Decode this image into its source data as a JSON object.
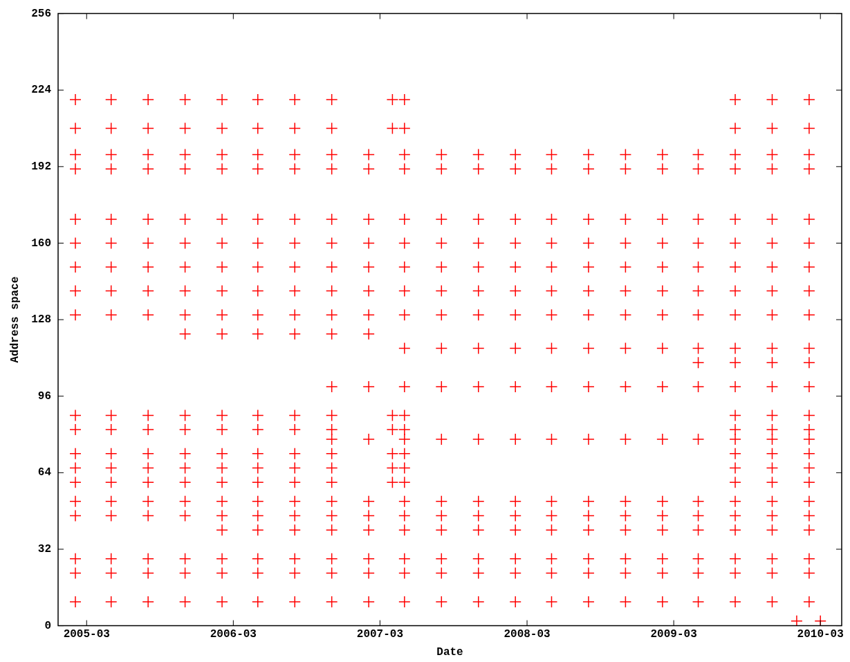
{
  "chart_data": {
    "type": "scatter",
    "xlabel": "Date",
    "ylabel": "Address space",
    "marker": "cross",
    "grid": false,
    "legend": false,
    "xlim": [
      "2004-12-20",
      "2010-04-23"
    ],
    "xticks": [
      "2005-03",
      "2006-03",
      "2007-03",
      "2008-03",
      "2009-03",
      "2010-03"
    ],
    "ylim": [
      0,
      256
    ],
    "yticks": [
      0,
      32,
      64,
      96,
      128,
      160,
      192,
      224,
      256
    ],
    "x": [
      "2005-02",
      "2005-05",
      "2005-08",
      "2005-11",
      "2006-02",
      "2006-05",
      "2006-08",
      "2006-11",
      "2007-02",
      "2007-05",
      "2007-08",
      "2007-11",
      "2008-02",
      "2008-05",
      "2008-08",
      "2008-11",
      "2009-02",
      "2009-05",
      "2009-08",
      "2009-11",
      "2010-02"
    ],
    "series": [
      {
        "color": "#ff0000",
        "x": [
          "2005-02",
          "2005-05",
          "2005-08",
          "2005-11",
          "2006-02",
          "2006-05",
          "2006-08",
          "2006-11",
          "2007-04",
          "2007-05",
          "2009-08",
          "2009-11",
          "2010-02"
        ],
        "values": [
          220,
          220,
          220,
          220,
          220,
          220,
          220,
          220,
          220,
          220,
          220,
          220,
          220
        ]
      },
      {
        "color": "#ff0000",
        "x": [
          "2005-02",
          "2005-05",
          "2005-08",
          "2005-11",
          "2006-02",
          "2006-05",
          "2006-08",
          "2006-11",
          "2007-04",
          "2007-05",
          "2009-08",
          "2009-11",
          "2010-02"
        ],
        "values": [
          208,
          208,
          208,
          208,
          208,
          208,
          208,
          208,
          208,
          208,
          208,
          208,
          208
        ]
      },
      {
        "color": "#ff0000",
        "values": [
          197,
          197,
          197,
          197,
          197,
          197,
          197,
          197,
          197,
          197,
          197,
          197,
          197,
          197,
          197,
          197,
          197,
          197,
          197,
          197,
          197
        ]
      },
      {
        "color": "#ff0000",
        "values": [
          191,
          191,
          191,
          191,
          191,
          191,
          191,
          191,
          191,
          191,
          191,
          191,
          191,
          191,
          191,
          191,
          191,
          191,
          191,
          191,
          191
        ]
      },
      {
        "color": "#ff0000",
        "values": [
          170,
          170,
          170,
          170,
          170,
          170,
          170,
          170,
          170,
          170,
          170,
          170,
          170,
          170,
          170,
          170,
          170,
          170,
          170,
          170,
          170
        ]
      },
      {
        "color": "#ff0000",
        "values": [
          160,
          160,
          160,
          160,
          160,
          160,
          160,
          160,
          160,
          160,
          160,
          160,
          160,
          160,
          160,
          160,
          160,
          160,
          160,
          160,
          160
        ]
      },
      {
        "color": "#ff0000",
        "values": [
          150,
          150,
          150,
          150,
          150,
          150,
          150,
          150,
          150,
          150,
          150,
          150,
          150,
          150,
          150,
          150,
          150,
          150,
          150,
          150,
          150
        ]
      },
      {
        "color": "#ff0000",
        "values": [
          140,
          140,
          140,
          140,
          140,
          140,
          140,
          140,
          140,
          140,
          140,
          140,
          140,
          140,
          140,
          140,
          140,
          140,
          140,
          140,
          140
        ]
      },
      {
        "color": "#ff0000",
        "values": [
          130,
          130,
          130,
          130,
          130,
          130,
          130,
          130,
          130,
          130,
          130,
          130,
          130,
          130,
          130,
          130,
          130,
          130,
          130,
          130,
          130
        ]
      },
      {
        "color": "#ff0000",
        "x": [
          "2005-11",
          "2006-02",
          "2006-05",
          "2006-08",
          "2006-11",
          "2007-02"
        ],
        "values": [
          122,
          122,
          122,
          122,
          122,
          122
        ]
      },
      {
        "color": "#ff0000",
        "x": [
          "2007-05",
          "2007-08",
          "2007-11",
          "2008-02",
          "2008-05",
          "2008-08",
          "2008-11",
          "2009-02",
          "2009-05",
          "2009-08",
          "2009-11",
          "2010-02"
        ],
        "values": [
          116,
          116,
          116,
          116,
          116,
          116,
          116,
          116,
          116,
          116,
          116,
          116
        ]
      },
      {
        "color": "#ff0000",
        "x": [
          "2009-05",
          "2009-08",
          "2009-11",
          "2010-02"
        ],
        "values": [
          110,
          110,
          110,
          110
        ]
      },
      {
        "color": "#ff0000",
        "x": [
          "2006-11",
          "2007-02",
          "2007-05",
          "2007-08",
          "2007-11",
          "2008-02",
          "2008-05",
          "2008-08",
          "2008-11",
          "2009-02",
          "2009-05",
          "2009-08",
          "2009-11",
          "2010-02"
        ],
        "values": [
          100,
          100,
          100,
          100,
          100,
          100,
          100,
          100,
          100,
          100,
          100,
          100,
          100,
          100
        ]
      },
      {
        "color": "#ff0000",
        "x": [
          "2005-02",
          "2005-05",
          "2005-08",
          "2005-11",
          "2006-02",
          "2006-05",
          "2006-08",
          "2006-11",
          "2007-04",
          "2007-05",
          "2009-08",
          "2009-11",
          "2010-02"
        ],
        "values": [
          88,
          88,
          88,
          88,
          88,
          88,
          88,
          88,
          88,
          88,
          88,
          88,
          88
        ]
      },
      {
        "color": "#ff0000",
        "x": [
          "2005-02",
          "2005-05",
          "2005-08",
          "2005-11",
          "2006-02",
          "2006-05",
          "2006-08",
          "2006-11",
          "2007-04",
          "2007-05",
          "2009-08",
          "2009-11",
          "2010-02"
        ],
        "values": [
          82,
          82,
          82,
          82,
          82,
          82,
          82,
          82,
          82,
          82,
          82,
          82,
          82
        ]
      },
      {
        "color": "#ff0000",
        "x": [
          "2006-11",
          "2007-02",
          "2007-05",
          "2007-08",
          "2007-11",
          "2008-02",
          "2008-05",
          "2008-08",
          "2008-11",
          "2009-02",
          "2009-05",
          "2009-08",
          "2009-11",
          "2010-02"
        ],
        "values": [
          78,
          78,
          78,
          78,
          78,
          78,
          78,
          78,
          78,
          78,
          78,
          78,
          78,
          78
        ]
      },
      {
        "color": "#ff0000",
        "x": [
          "2005-02",
          "2005-05",
          "2005-08",
          "2005-11",
          "2006-02",
          "2006-05",
          "2006-08",
          "2006-11",
          "2007-04",
          "2007-05",
          "2009-08",
          "2009-11",
          "2010-02"
        ],
        "values": [
          72,
          72,
          72,
          72,
          72,
          72,
          72,
          72,
          72,
          72,
          72,
          72,
          72
        ]
      },
      {
        "color": "#ff0000",
        "x": [
          "2005-02",
          "2005-05",
          "2005-08",
          "2005-11",
          "2006-02",
          "2006-05",
          "2006-08",
          "2006-11",
          "2007-04",
          "2007-05",
          "2009-08",
          "2009-11",
          "2010-02"
        ],
        "values": [
          66,
          66,
          66,
          66,
          66,
          66,
          66,
          66,
          66,
          66,
          66,
          66,
          66
        ]
      },
      {
        "color": "#ff0000",
        "x": [
          "2005-02",
          "2005-05",
          "2005-08",
          "2005-11",
          "2006-02",
          "2006-05",
          "2006-08",
          "2006-11",
          "2007-04",
          "2007-05",
          "2009-08",
          "2009-11",
          "2010-02"
        ],
        "values": [
          60,
          60,
          60,
          60,
          60,
          60,
          60,
          60,
          60,
          60,
          60,
          60,
          60
        ]
      },
      {
        "color": "#ff0000",
        "values": [
          52,
          52,
          52,
          52,
          52,
          52,
          52,
          52,
          52,
          52,
          52,
          52,
          52,
          52,
          52,
          52,
          52,
          52,
          52,
          52,
          52
        ]
      },
      {
        "color": "#ff0000",
        "values": [
          46,
          46,
          46,
          46,
          46,
          46,
          46,
          46,
          46,
          46,
          46,
          46,
          46,
          46,
          46,
          46,
          46,
          46,
          46,
          46,
          46
        ]
      },
      {
        "color": "#ff0000",
        "x": [
          "2006-02",
          "2006-05",
          "2006-08",
          "2006-11",
          "2007-02",
          "2007-05",
          "2007-08",
          "2007-11",
          "2008-02",
          "2008-05",
          "2008-08",
          "2008-11",
          "2009-02",
          "2009-05",
          "2009-08",
          "2009-11",
          "2010-02"
        ],
        "values": [
          40,
          40,
          40,
          40,
          40,
          40,
          40,
          40,
          40,
          40,
          40,
          40,
          40,
          40,
          40,
          40,
          40
        ]
      },
      {
        "color": "#ff0000",
        "values": [
          28,
          28,
          28,
          28,
          28,
          28,
          28,
          28,
          28,
          28,
          28,
          28,
          28,
          28,
          28,
          28,
          28,
          28,
          28,
          28,
          28
        ]
      },
      {
        "color": "#ff0000",
        "values": [
          22,
          22,
          22,
          22,
          22,
          22,
          22,
          22,
          22,
          22,
          22,
          22,
          22,
          22,
          22,
          22,
          22,
          22,
          22,
          22,
          22
        ]
      },
      {
        "color": "#ff0000",
        "values": [
          10,
          10,
          10,
          10,
          10,
          10,
          10,
          10,
          10,
          10,
          10,
          10,
          10,
          10,
          10,
          10,
          10,
          10,
          10,
          10,
          10
        ]
      },
      {
        "color": "#ff0000",
        "x": [
          "2010-01",
          "2010-03"
        ],
        "values": [
          2,
          2
        ]
      }
    ]
  }
}
